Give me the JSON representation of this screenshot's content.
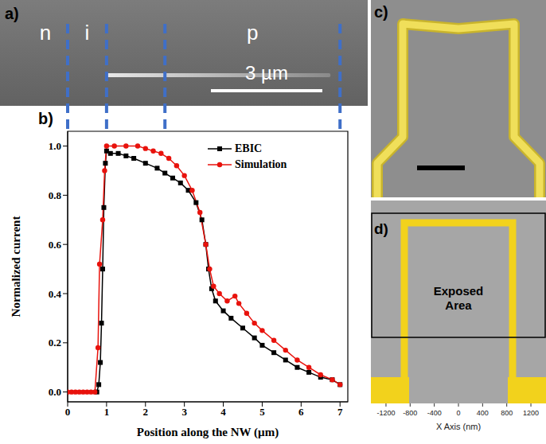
{
  "chart_data": {
    "type": "line",
    "panel": "b)",
    "xlabel": "Position along the NW (µm)",
    "ylabel": "Normalized current",
    "xlim": [
      0,
      7.2
    ],
    "xticks": [
      0,
      1,
      2,
      3,
      4,
      5,
      6,
      7
    ],
    "ylim": [
      -0.04,
      1.06
    ],
    "yticks": [
      {
        "value": 0,
        "label": "0.0"
      },
      0.2,
      0.4,
      0.6,
      0.8,
      {
        "value": 1,
        "label": "1.0"
      }
    ],
    "legend": "upper right",
    "regions": {
      "labels": [
        "n",
        "i",
        "p"
      ],
      "boundaries": [
        0,
        1,
        2.5,
        7
      ]
    },
    "series": [
      {
        "name": "EBIC",
        "color": "#000000",
        "marker": "square",
        "x": [
          0.75,
          0.8,
          0.84,
          0.87,
          0.9,
          0.93,
          0.97,
          1.0,
          1.1,
          1.3,
          1.5,
          1.7,
          2.0,
          2.3,
          2.5,
          2.7,
          2.9,
          3.1,
          3.3,
          3.45,
          3.55,
          3.62,
          3.7,
          3.8,
          4.0,
          4.2,
          4.5,
          4.8,
          5.0,
          5.3,
          5.6,
          5.9,
          6.2,
          6.5,
          6.8,
          7.0
        ],
        "values": [
          0,
          0.03,
          0.12,
          0.28,
          0.5,
          0.75,
          0.93,
          0.98,
          0.97,
          0.97,
          0.96,
          0.95,
          0.93,
          0.91,
          0.89,
          0.87,
          0.85,
          0.82,
          0.77,
          0.7,
          0.6,
          0.5,
          0.42,
          0.37,
          0.33,
          0.3,
          0.26,
          0.22,
          0.19,
          0.16,
          0.13,
          0.1,
          0.08,
          0.06,
          0.05,
          0.03
        ]
      },
      {
        "name": "Simulation",
        "color": "#e8120c",
        "marker": "circle",
        "x": [
          0,
          0.1,
          0.2,
          0.3,
          0.4,
          0.5,
          0.6,
          0.7,
          0.78,
          0.82,
          0.9,
          0.95,
          1.0,
          1.2,
          1.5,
          1.8,
          2.0,
          2.2,
          2.4,
          2.6,
          2.8,
          3.0,
          3.2,
          3.4,
          3.55,
          3.65,
          3.75,
          3.9,
          4.1,
          4.3,
          4.4,
          4.6,
          4.8,
          5.0,
          5.3,
          5.6,
          5.9,
          6.2,
          6.5,
          6.8,
          7.0
        ],
        "values": [
          0,
          0,
          0,
          0,
          0,
          0,
          0,
          0,
          0.18,
          0.52,
          0.7,
          0.9,
          1.0,
          1.0,
          1.0,
          1.0,
          0.99,
          0.98,
          0.97,
          0.95,
          0.92,
          0.88,
          0.82,
          0.73,
          0.6,
          0.5,
          0.43,
          0.4,
          0.37,
          0.39,
          0.36,
          0.32,
          0.28,
          0.25,
          0.21,
          0.17,
          0.13,
          0.1,
          0.07,
          0.05,
          0.03
        ]
      }
    ]
  },
  "panels": {
    "a": {
      "label": "a)",
      "scale_bar": "3 µm"
    },
    "c": {
      "label": "c)"
    },
    "d": {
      "label": "d)",
      "annotation": "Exposed Area",
      "xlabel": "X Axis (nm)",
      "xlim": [
        -1450,
        1450
      ],
      "xticks": [
        -1200,
        -800,
        -400,
        0,
        400,
        800,
        1200
      ]
    }
  }
}
